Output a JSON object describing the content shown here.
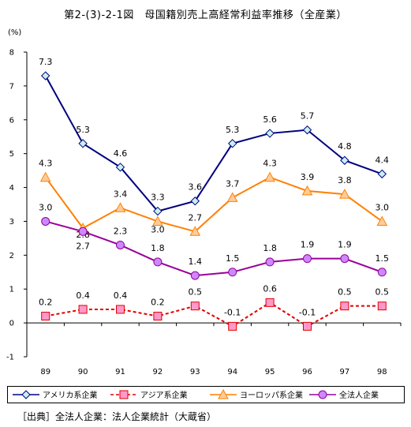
{
  "title": "第2-(3)-2-1図　母国籍別売上高経常利益率推移（全産業）",
  "source": "［出典］全法人企業：法人企業統計（大蔵省）",
  "chart_data": {
    "type": "line",
    "title": "第2-(3)-2-1図　母国籍別売上高経常利益率推移（全産業）",
    "ylabel": "(%)",
    "xlabel": "",
    "categories": [
      "89",
      "90",
      "91",
      "92",
      "93",
      "94",
      "95",
      "96",
      "97",
      "98"
    ],
    "ylim": [
      -1,
      8
    ],
    "yticks": [
      "8",
      "7",
      "6",
      "5",
      "4",
      "3",
      "2",
      "1",
      "0",
      "-1"
    ],
    "grid": false,
    "legend_position": "bottom",
    "series": [
      {
        "name": "アメリカ系企業",
        "values": [
          7.3,
          5.3,
          4.6,
          3.3,
          3.6,
          5.3,
          5.6,
          5.7,
          4.8,
          4.4
        ],
        "labels": [
          "7.3",
          "5.3",
          "4.6",
          "3.3",
          "3.6",
          "5.3",
          "5.6",
          "5.7",
          "4.8",
          "4.4"
        ],
        "color": "#000080",
        "marker": "diamond",
        "marker_fill": "#c8f0f0",
        "dash": "solid"
      },
      {
        "name": "アジア系企業",
        "values": [
          0.2,
          0.4,
          0.4,
          0.2,
          0.5,
          -0.1,
          0.6,
          -0.1,
          0.5,
          0.5
        ],
        "labels": [
          "0.2",
          "0.4",
          "0.4",
          "0.2",
          "0.5",
          "-0.1",
          "0.6",
          "-0.1",
          "0.5",
          "0.5"
        ],
        "color": "#e00000",
        "marker": "square",
        "marker_fill": "#ff99cc",
        "dash": "dashed"
      },
      {
        "name": "ヨーロッパ系企業",
        "values": [
          4.3,
          2.8,
          3.4,
          3.0,
          2.7,
          3.7,
          4.3,
          3.9,
          3.8,
          3.0
        ],
        "labels": [
          "4.3",
          "2.8",
          "3.4",
          "3.0",
          "2.7",
          "3.7",
          "4.3",
          "3.9",
          "3.8",
          "3.0"
        ],
        "color": "#ff8000",
        "marker": "triangle",
        "marker_fill": "#ffcc99",
        "dash": "solid"
      },
      {
        "name": "全法人企業",
        "values": [
          3.0,
          2.7,
          2.3,
          1.8,
          1.4,
          1.5,
          1.8,
          1.9,
          1.9,
          1.5
        ],
        "labels": [
          "3.0",
          "2.7",
          "2.3",
          "1.8",
          "1.4",
          "1.5",
          "1.8",
          "1.9",
          "1.9",
          "1.5"
        ],
        "color": "#990099",
        "marker": "circle",
        "marker_fill": "#cc88ff",
        "dash": "solid"
      }
    ]
  }
}
